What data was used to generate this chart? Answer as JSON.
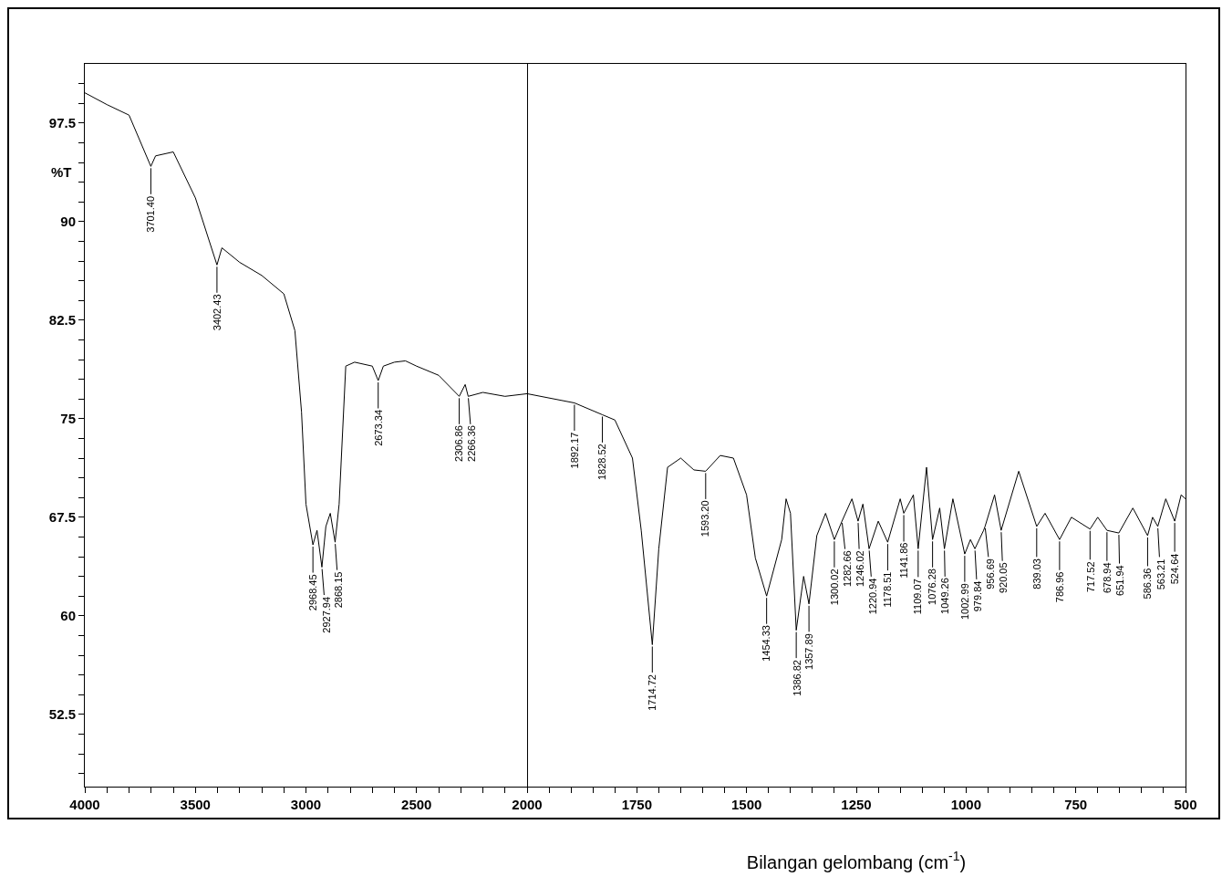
{
  "chart_data": [
    {
      "type": "line",
      "ylabel": "%T",
      "color": "#000000",
      "x": [
        4000,
        3900,
        3800,
        3701.4,
        3680,
        3600,
        3500,
        3402.43,
        3380,
        3300,
        3200,
        3100,
        3050,
        3020,
        3000,
        2968.45,
        2950,
        2927.94,
        2910,
        2890,
        2868.15,
        2850,
        2820,
        2780,
        2700,
        2673.34,
        2650,
        2600,
        2550,
        2500,
        2400,
        2306.86,
        2280,
        2266.36,
        2200,
        2100,
        2000
      ],
      "values": [
        99.8,
        98.9,
        98.1,
        94.2,
        95,
        95.3,
        91.8,
        86.7,
        88,
        86.9,
        85.9,
        84.5,
        81.7,
        75.5,
        68.5,
        65.4,
        66.5,
        63.7,
        66.8,
        67.8,
        65.6,
        68.5,
        79,
        79.3,
        79,
        77.9,
        79,
        79.3,
        79.4,
        79,
        78.3,
        76.7,
        77.6,
        76.7,
        77,
        76.7,
        76.9
      ],
      "xlim": [
        4000,
        2000
      ],
      "xticks": [
        4000,
        {
          "value": 3900,
          "label": null
        },
        {
          "value": 3800,
          "label": null
        },
        {
          "value": 3700,
          "label": null
        },
        {
          "value": 3600,
          "label": null
        },
        3500,
        {
          "value": 3400,
          "label": null
        },
        {
          "value": 3300,
          "label": null
        },
        {
          "value": 3200,
          "label": null
        },
        {
          "value": 3100,
          "label": null
        },
        3000,
        {
          "value": 2900,
          "label": null
        },
        {
          "value": 2800,
          "label": null
        },
        {
          "value": 2700,
          "label": null
        },
        {
          "value": 2600,
          "label": null
        },
        2500,
        {
          "value": 2400,
          "label": null
        },
        {
          "value": 2300,
          "label": null
        },
        {
          "value": 2200,
          "label": null
        },
        {
          "value": 2100,
          "label": null
        },
        2000
      ],
      "ylim": [
        47,
        102
      ],
      "yticks": [
        {
          "value": 48,
          "label": null
        },
        {
          "value": 49.5,
          "label": null
        },
        {
          "value": 51,
          "label": null
        },
        52.5,
        {
          "value": 54,
          "label": null
        },
        {
          "value": 55.5,
          "label": null
        },
        {
          "value": 57,
          "label": null
        },
        {
          "value": 58.5,
          "label": null
        },
        60,
        {
          "value": 61.5,
          "label": null
        },
        {
          "value": 63,
          "label": null
        },
        {
          "value": 64.5,
          "label": null
        },
        {
          "value": 66,
          "label": null
        },
        67.5,
        {
          "value": 69,
          "label": null
        },
        {
          "value": 70.5,
          "label": null
        },
        {
          "value": 72,
          "label": null
        },
        {
          "value": 73.5,
          "label": null
        },
        75,
        {
          "value": 76.5,
          "label": null
        },
        {
          "value": 78,
          "label": null
        },
        {
          "value": 79.5,
          "label": null
        },
        {
          "value": 81,
          "label": null
        },
        82.5,
        {
          "value": 84,
          "label": null
        },
        {
          "value": 85.5,
          "label": null
        },
        {
          "value": 87,
          "label": null
        },
        {
          "value": 88.5,
          "label": null
        },
        90,
        {
          "value": 91.5,
          "label": null
        },
        {
          "value": 93,
          "label": null
        },
        {
          "value": 94.5,
          "label": null
        },
        {
          "value": 96,
          "label": null
        },
        97.5,
        {
          "value": 99,
          "label": null
        },
        {
          "value": 100.5,
          "label": null
        }
      ],
      "annotations": [
        {
          "text": "3701.40",
          "x": 3701.4,
          "y": 94.2
        },
        {
          "text": "3402.43",
          "x": 3402.43,
          "y": 86.7
        },
        {
          "text": "2968.45",
          "x": 2968.45,
          "y": 65.4
        },
        {
          "text": "2927.94",
          "x": 2927.94,
          "y": 63.7
        },
        {
          "text": "2868.15",
          "x": 2868.15,
          "y": 65.6
        },
        {
          "text": "2673.34",
          "x": 2673.34,
          "y": 77.9
        },
        {
          "text": "2306.86",
          "x": 2306.86,
          "y": 76.7
        },
        {
          "text": "2266.36",
          "x": 2266.36,
          "y": 76.7
        }
      ]
    },
    {
      "type": "line",
      "xlabel": "Bilangan gelombang (cm$^{-1}$)",
      "color": "#000000",
      "tick_labels": "x",
      "x": [
        2000,
        1892.17,
        1828.52,
        1800,
        1760,
        1740,
        1714.72,
        1700,
        1680,
        1650,
        1620,
        1593.2,
        1560,
        1530,
        1500,
        1480,
        1454.33,
        1420,
        1410,
        1400,
        1386.82,
        1370,
        1357.89,
        1340,
        1320,
        1300.02,
        1282.66,
        1260,
        1246.02,
        1235,
        1220.94,
        1200,
        1178.51,
        1150,
        1141.86,
        1120,
        1109.07,
        1090,
        1076.28,
        1060,
        1049.26,
        1030,
        1002.99,
        990,
        979.84,
        960,
        956.69,
        935,
        920.05,
        880,
        839.03,
        820,
        786.96,
        760,
        717.52,
        700,
        678.94,
        651.94,
        620,
        586.36,
        575,
        563.21,
        545,
        524.64,
        510,
        500
      ],
      "values": [
        76.9,
        76.2,
        75.3,
        74.9,
        72,
        66.5,
        57.8,
        65.1,
        71.3,
        72,
        71.1,
        71,
        72.2,
        72,
        69.2,
        64.4,
        61.5,
        65.8,
        68.9,
        67.8,
        58.9,
        63,
        60.9,
        66.1,
        67.8,
        65.8,
        67.2,
        68.9,
        67.2,
        68.5,
        65.1,
        67.2,
        65.6,
        68.9,
        67.8,
        69.2,
        65.1,
        71.3,
        65.8,
        68.2,
        65.1,
        68.9,
        64.7,
        65.8,
        65.1,
        66.5,
        66.8,
        69.2,
        66.5,
        71,
        66.8,
        67.8,
        65.8,
        67.5,
        66.6,
        67.5,
        66.5,
        66.3,
        68.2,
        66.1,
        67.5,
        66.8,
        68.9,
        67.2,
        69.2,
        68.9
      ],
      "xlim": [
        2000,
        500
      ],
      "xticks": [
        {
          "value": 1950,
          "label": null
        },
        {
          "value": 1900,
          "label": null
        },
        {
          "value": 1850,
          "label": null
        },
        {
          "value": 1800,
          "label": null
        },
        1750,
        {
          "value": 1700,
          "label": null
        },
        {
          "value": 1650,
          "label": null
        },
        {
          "value": 1600,
          "label": null
        },
        {
          "value": 1550,
          "label": null
        },
        1500,
        {
          "value": 1450,
          "label": null
        },
        {
          "value": 1400,
          "label": null
        },
        {
          "value": 1350,
          "label": null
        },
        {
          "value": 1300,
          "label": null
        },
        1250,
        {
          "value": 1200,
          "label": null
        },
        {
          "value": 1150,
          "label": null
        },
        {
          "value": 1100,
          "label": null
        },
        {
          "value": 1050,
          "label": null
        },
        1000,
        {
          "value": 950,
          "label": null
        },
        {
          "value": 900,
          "label": null
        },
        {
          "value": 850,
          "label": null
        },
        {
          "value": 800,
          "label": null
        },
        750,
        {
          "value": 700,
          "label": null
        },
        {
          "value": 650,
          "label": null
        },
        {
          "value": 600,
          "label": null
        },
        {
          "value": 550,
          "label": null
        },
        500
      ],
      "ylim": [
        47,
        102
      ],
      "annotations": [
        {
          "text": "1892.17",
          "x": 1892.17,
          "y": 76.2
        },
        {
          "text": "1828.52",
          "x": 1828.52,
          "y": 75.3
        },
        {
          "text": "1714.72",
          "x": 1714.72,
          "y": 57.8
        },
        {
          "text": "1593.20",
          "x": 1593.2,
          "y": 71
        },
        {
          "text": "1454.33",
          "x": 1454.33,
          "y": 61.5
        },
        {
          "text": "1386.82",
          "x": 1386.82,
          "y": 58.9
        },
        {
          "text": "1357.89",
          "x": 1357.89,
          "y": 60.9
        },
        {
          "text": "1300.02",
          "x": 1300.02,
          "y": 65.8
        },
        {
          "text": "1282.66",
          "x": 1282.66,
          "y": 67.2
        },
        {
          "text": "1246.02",
          "x": 1246.02,
          "y": 67.2
        },
        {
          "text": "1220.94",
          "x": 1220.94,
          "y": 65.1
        },
        {
          "text": "1178.51",
          "x": 1178.51,
          "y": 65.6
        },
        {
          "text": "1141.86",
          "x": 1141.86,
          "y": 67.8
        },
        {
          "text": "1109.07",
          "x": 1109.07,
          "y": 65.1
        },
        {
          "text": "1076.28",
          "x": 1076.28,
          "y": 65.8
        },
        {
          "text": "1049.26",
          "x": 1049.26,
          "y": 65.1
        },
        {
          "text": "1002.99",
          "x": 1002.99,
          "y": 64.7
        },
        {
          "text": "979.84",
          "x": 979.84,
          "y": 65.1
        },
        {
          "text": "956.69",
          "x": 956.69,
          "y": 66.8
        },
        {
          "text": "920.05",
          "x": 920.05,
          "y": 66.5
        },
        {
          "text": "839.03",
          "x": 839.03,
          "y": 66.8
        },
        {
          "text": "786.96",
          "x": 786.96,
          "y": 65.8
        },
        {
          "text": "717.52",
          "x": 717.52,
          "y": 66.6
        },
        {
          "text": "678.94",
          "x": 678.94,
          "y": 66.5
        },
        {
          "text": "651.94",
          "x": 651.94,
          "y": 66.3
        },
        {
          "text": "586.36",
          "x": 586.36,
          "y": 66.1
        },
        {
          "text": "563.21",
          "x": 563.21,
          "y": 66.8
        },
        {
          "text": "524.64",
          "x": 524.64,
          "y": 67.2
        }
      ]
    }
  ]
}
